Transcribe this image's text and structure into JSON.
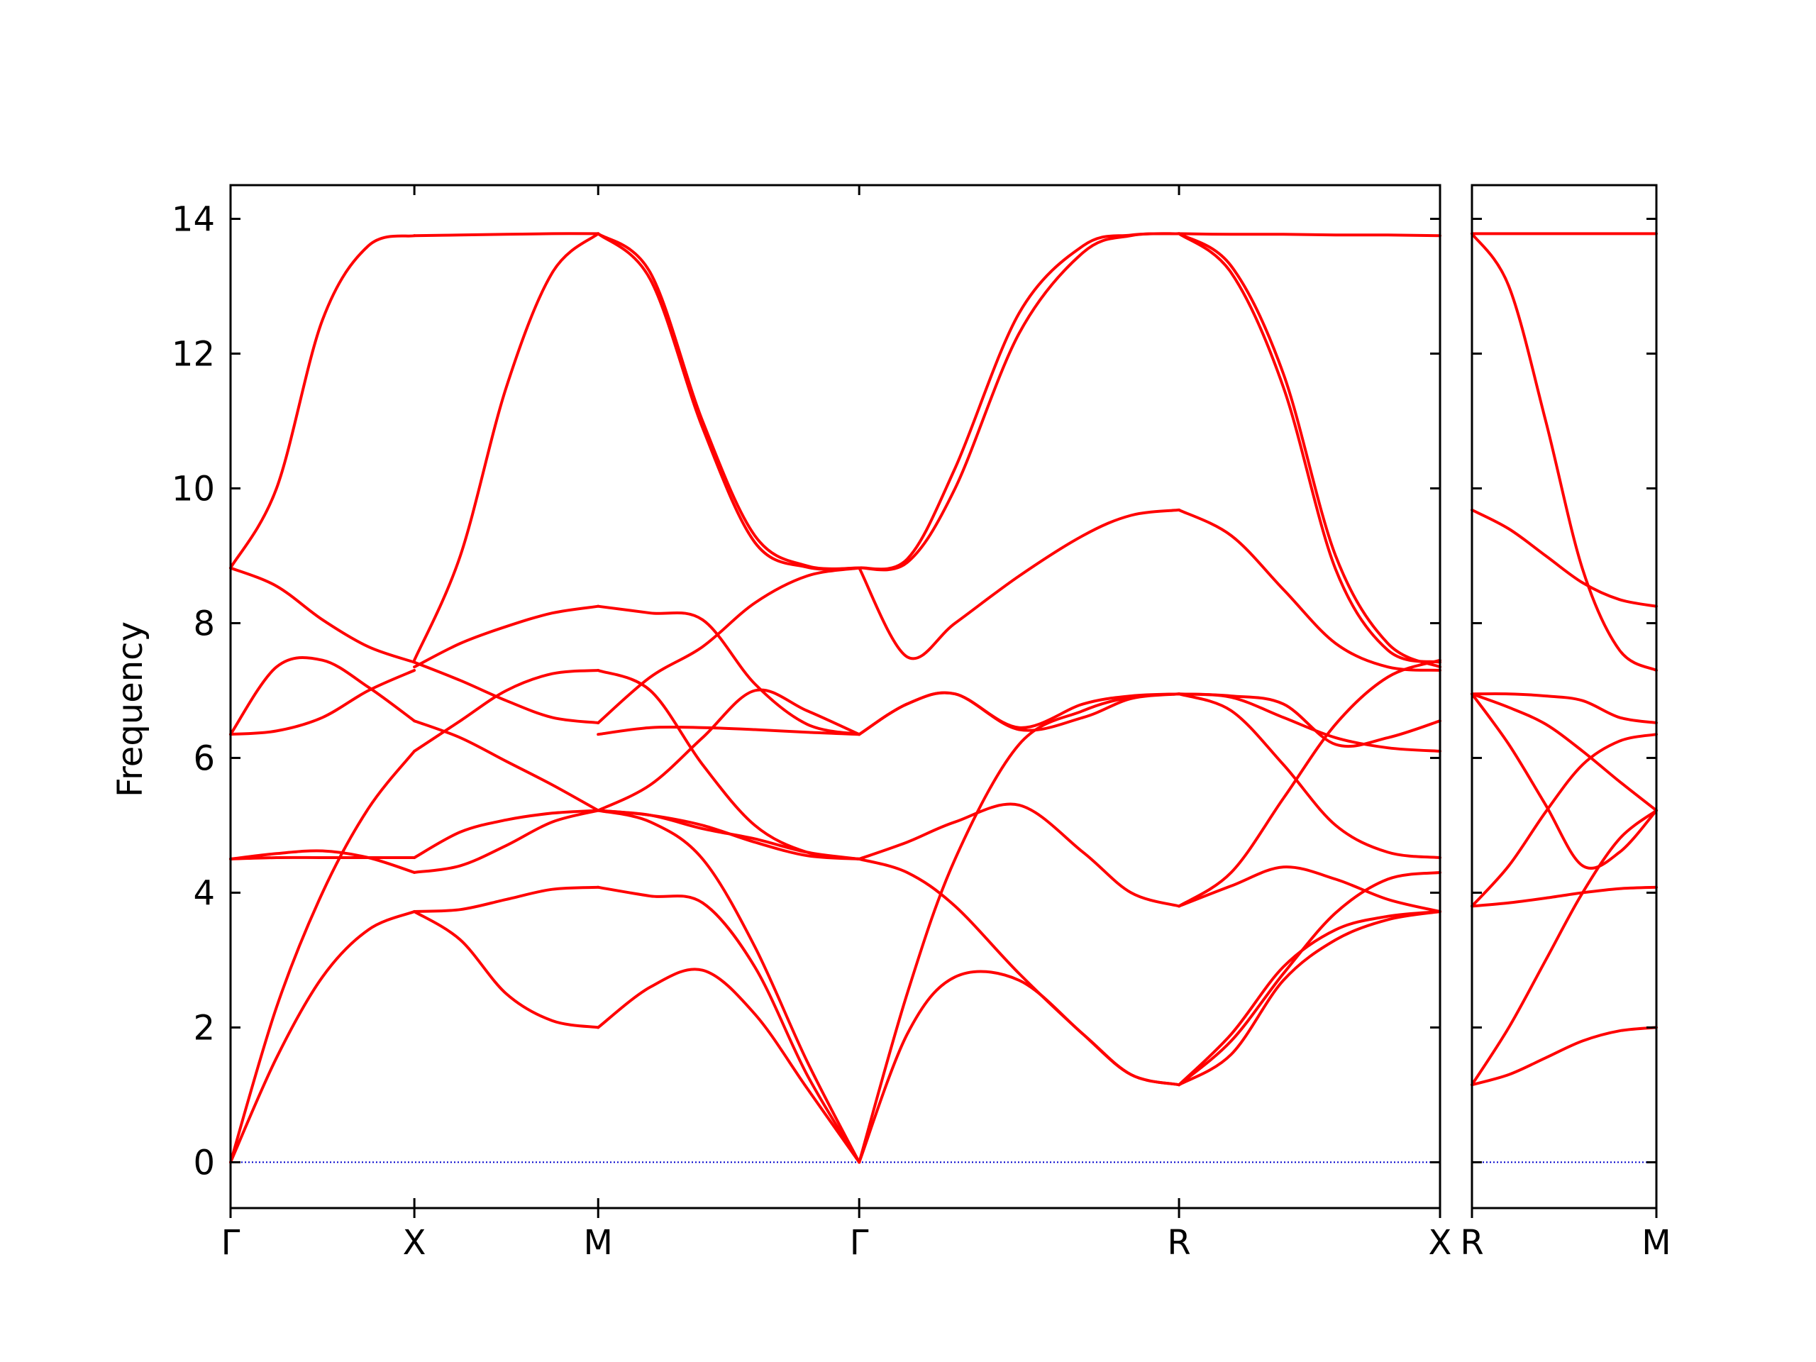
{
  "chart_data": {
    "type": "line",
    "title": "",
    "ylabel": "Frequency",
    "ylim": [
      -0.68,
      14.5
    ],
    "y_ticks": [
      0,
      2,
      4,
      6,
      8,
      10,
      12,
      14
    ],
    "grid": false,
    "legend": "none",
    "colors": {
      "bands": "#ff0000",
      "zero_line": "#0000cc",
      "axes": "#000000"
    },
    "panels": [
      {
        "name": "main-panel",
        "kpoints": [
          {
            "label": "Γ",
            "x": 0.0
          },
          {
            "label": "X",
            "x": 0.5
          },
          {
            "label": "M",
            "x": 1.0
          },
          {
            "label": "Γ",
            "x": 1.71
          },
          {
            "label": "R",
            "x": 2.58
          },
          {
            "label": "X",
            "x": 3.29
          }
        ],
        "xlim": [
          0.0,
          3.29
        ],
        "segments": [
          {
            "from": "Γ",
            "to": "X",
            "t": [
              0,
              0.25,
              0.5,
              0.75,
              1
            ],
            "bands": [
              [
                0,
                1.55,
                2.75,
                3.45,
                3.72
              ],
              [
                0,
                2.3,
                4.0,
                5.25,
                6.1
              ],
              [
                4.5,
                4.58,
                4.62,
                4.52,
                4.3
              ],
              [
                4.5,
                4.52,
                4.52,
                4.52,
                4.52
              ],
              [
                6.35,
                6.4,
                6.6,
                7.0,
                7.3
              ],
              [
                6.35,
                7.35,
                7.45,
                7.05,
                6.55
              ],
              [
                8.82,
                8.55,
                8.05,
                7.65,
                7.42
              ],
              [
                8.82,
                10.0,
                12.5,
                13.6,
                13.75
              ]
            ]
          },
          {
            "from": "X",
            "to": "M",
            "t": [
              0,
              0.25,
              0.5,
              0.75,
              1
            ],
            "bands": [
              [
                3.72,
                3.3,
                2.5,
                2.1,
                2.0
              ],
              [
                3.72,
                3.75,
                3.9,
                4.05,
                4.08
              ],
              [
                4.3,
                4.4,
                4.7,
                5.05,
                5.22
              ],
              [
                4.52,
                4.9,
                5.08,
                5.18,
                5.22
              ],
              [
                6.55,
                6.3,
                5.95,
                5.6,
                5.22
              ],
              [
                6.1,
                6.55,
                7.0,
                7.25,
                7.3
              ],
              [
                7.42,
                7.15,
                6.85,
                6.6,
                6.52
              ],
              [
                7.35,
                7.7,
                7.95,
                8.15,
                8.25
              ],
              [
                7.45,
                9.0,
                11.5,
                13.2,
                13.78
              ],
              [
                13.75,
                13.76,
                13.77,
                13.78,
                13.78
              ]
            ]
          },
          {
            "from": "M",
            "to": "Γ",
            "t": [
              0,
              0.2,
              0.4,
              0.6,
              0.8,
              1
            ],
            "bands": [
              [
                2.0,
                2.6,
                2.85,
                2.2,
                1.1,
                0
              ],
              [
                4.08,
                3.95,
                3.85,
                2.9,
                1.3,
                0
              ],
              [
                5.22,
                5.05,
                4.5,
                3.2,
                1.5,
                0
              ],
              [
                5.22,
                5.15,
                4.95,
                4.8,
                4.6,
                4.5
              ],
              [
                5.22,
                5.15,
                5.0,
                4.75,
                4.55,
                4.5
              ],
              [
                5.22,
                5.6,
                6.3,
                7.0,
                6.7,
                6.35
              ],
              [
                6.52,
                7.2,
                7.65,
                8.3,
                8.7,
                8.82
              ],
              [
                7.3,
                7.0,
                5.9,
                5.0,
                4.6,
                4.5
              ],
              [
                8.25,
                8.15,
                8.05,
                7.1,
                6.5,
                6.35
              ],
              [
                6.35,
                6.45,
                6.45,
                6.42,
                6.38,
                6.35
              ],
              [
                13.78,
                13.2,
                11.0,
                9.3,
                8.85,
                8.82
              ],
              [
                13.78,
                13.1,
                10.9,
                9.2,
                8.83,
                8.82
              ]
            ]
          },
          {
            "from": "Γ",
            "to": "R",
            "t": [
              0,
              0.15,
              0.3,
              0.5,
              0.7,
              0.85,
              1
            ],
            "bands": [
              [
                0,
                1.9,
                2.75,
                2.7,
                1.9,
                1.3,
                1.15
              ],
              [
                0,
                2.5,
                4.5,
                6.2,
                6.7,
                6.9,
                6.95
              ],
              [
                4.5,
                4.3,
                3.8,
                2.8,
                1.9,
                1.3,
                1.15
              ],
              [
                4.5,
                4.75,
                5.05,
                5.3,
                4.6,
                4.0,
                3.8
              ],
              [
                6.35,
                6.8,
                6.95,
                6.42,
                6.6,
                6.88,
                6.95
              ],
              [
                6.35,
                6.8,
                6.95,
                6.45,
                6.8,
                6.92,
                6.95
              ],
              [
                8.82,
                7.5,
                8.0,
                8.7,
                9.3,
                9.6,
                9.68
              ],
              [
                8.82,
                8.9,
                10.0,
                12.3,
                13.5,
                13.75,
                13.78
              ],
              [
                8.82,
                8.95,
                10.3,
                12.6,
                13.6,
                13.76,
                13.78
              ]
            ]
          },
          {
            "from": "R",
            "to": "X",
            "t": [
              0,
              0.2,
              0.4,
              0.6,
              0.8,
              1
            ],
            "bands": [
              [
                1.15,
                1.6,
                2.7,
                3.3,
                3.6,
                3.72
              ],
              [
                1.15,
                1.9,
                2.9,
                3.45,
                3.65,
                3.72
              ],
              [
                1.15,
                1.8,
                2.8,
                3.7,
                4.2,
                4.3
              ],
              [
                3.8,
                4.1,
                4.38,
                4.2,
                3.9,
                3.72
              ],
              [
                3.8,
                4.3,
                5.4,
                6.5,
                7.2,
                7.45
              ],
              [
                6.95,
                6.7,
                5.9,
                5.0,
                4.6,
                4.52
              ],
              [
                6.95,
                6.92,
                6.8,
                6.2,
                6.3,
                6.55
              ],
              [
                6.95,
                6.9,
                6.6,
                6.3,
                6.15,
                6.1
              ],
              [
                9.68,
                9.3,
                8.5,
                7.7,
                7.35,
                7.3
              ],
              [
                13.78,
                13.2,
                11.5,
                8.8,
                7.6,
                7.42
              ],
              [
                13.78,
                13.3,
                11.7,
                9.0,
                7.7,
                7.35
              ],
              [
                13.78,
                13.77,
                13.77,
                13.76,
                13.76,
                13.75
              ]
            ]
          }
        ]
      },
      {
        "name": "side-panel",
        "kpoints": [
          {
            "label": "R",
            "x": 0.0
          },
          {
            "label": "M",
            "x": 0.5
          }
        ],
        "xlim": [
          0.0,
          0.5
        ],
        "segments": [
          {
            "from": "R",
            "to": "M",
            "t": [
              0,
              0.2,
              0.4,
              0.6,
              0.8,
              1
            ],
            "bands": [
              [
                1.15,
                1.3,
                1.55,
                1.8,
                1.95,
                2.0
              ],
              [
                1.15,
                2.0,
                3.0,
                4.0,
                4.8,
                5.22
              ],
              [
                3.8,
                3.85,
                3.92,
                4.0,
                4.06,
                4.08
              ],
              [
                3.8,
                4.4,
                5.2,
                5.9,
                6.25,
                6.35
              ],
              [
                6.95,
                6.2,
                5.3,
                4.4,
                4.6,
                5.22
              ],
              [
                6.95,
                6.75,
                6.5,
                6.1,
                5.65,
                5.22
              ],
              [
                6.95,
                6.95,
                6.92,
                6.85,
                6.6,
                6.52
              ],
              [
                9.68,
                9.4,
                9.0,
                8.6,
                8.35,
                8.25
              ],
              [
                13.78,
                13.0,
                11.0,
                8.8,
                7.6,
                7.3
              ],
              [
                13.78,
                13.78,
                13.78,
                13.78,
                13.78,
                13.78
              ]
            ]
          }
        ]
      }
    ]
  }
}
